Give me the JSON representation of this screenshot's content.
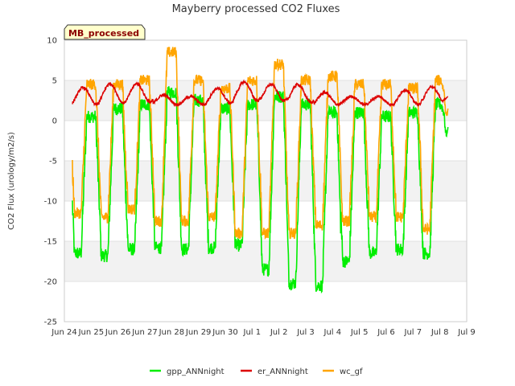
{
  "chart_data": {
    "type": "line",
    "title": "Mayberry processed CO2 Fluxes",
    "xlabel": "",
    "ylabel": "CO2 Flux (urology/m2/s)",
    "tag": "MB_processed",
    "ylim": [
      -25,
      10
    ],
    "yticks": [
      10,
      5,
      0,
      -5,
      -10,
      -15,
      -20,
      -25
    ],
    "xlim": [
      0,
      15
    ],
    "xtick_labels": [
      "Jun 24",
      "Jun 25",
      "Jun 26",
      "Jun 27",
      "Jun 28",
      "Jun 29",
      "Jun 30",
      "Jul 1",
      "Jul 2",
      "Jul 3",
      "Jul 4",
      "Jul 5",
      "Jul 6",
      "Jul 7",
      "Jul 8",
      "Jul 9"
    ],
    "x_unit": "days since Jun 24",
    "series": [
      {
        "name": "gpp_ANNnight",
        "color": "#00ee00",
        "days_start": 0.3,
        "daily_min": [
          -16.5,
          -16.8,
          -16.0,
          -15.8,
          -16.0,
          -15.8,
          -15.5,
          -18.5,
          -20.2,
          -20.5,
          -17.5,
          -16.5,
          -16.0,
          -16.5
        ],
        "daily_max": [
          0.5,
          1.5,
          2.0,
          3.5,
          2.5,
          1.5,
          2.0,
          3.0,
          2.0,
          1.0,
          1.0,
          0.5,
          1.0,
          2.0
        ],
        "end_value": -0.8
      },
      {
        "name": "er_ANNnight",
        "color": "#dd0000",
        "days_start": 0.3,
        "daily_min": [
          2.0,
          2.2,
          2.3,
          2.0,
          2.0,
          2.2,
          2.5,
          2.5,
          2.3,
          2.0,
          2.0,
          2.0,
          2.0,
          2.2
        ],
        "daily_max": [
          4.1,
          4.6,
          4.6,
          3.2,
          3.0,
          4.0,
          4.8,
          4.5,
          4.5,
          3.5,
          3.0,
          3.0,
          3.8,
          4.2
        ],
        "end_value": 3.0
      },
      {
        "name": "wc_gf",
        "color": "#ffa500",
        "days_start": 0.3,
        "daily_min": [
          -11.5,
          -12.0,
          -11.0,
          -12.5,
          -12.5,
          -12.0,
          -14.0,
          -14.0,
          -14.0,
          -13.0,
          -12.5,
          -12.0,
          -12.0,
          -13.5
        ],
        "daily_max": [
          4.5,
          4.5,
          5.0,
          8.5,
          5.0,
          4.0,
          5.0,
          7.0,
          5.0,
          5.5,
          4.5,
          4.5,
          4.0,
          5.0
        ],
        "end_value": 1.5
      }
    ],
    "legend": [
      "gpp_ANNnight",
      "er_ANNnight",
      "wc_gf"
    ],
    "legend_position": "bottom",
    "grid": true
  }
}
